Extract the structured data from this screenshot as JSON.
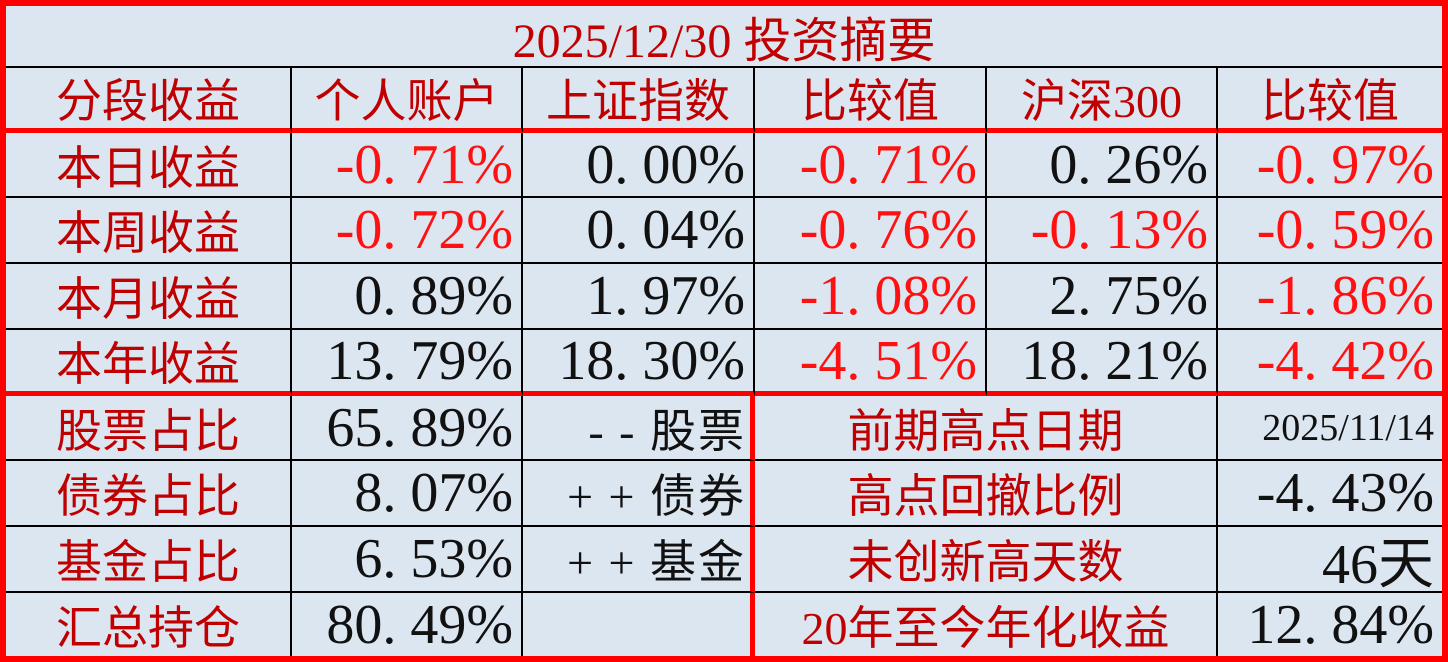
{
  "title": "2025/12/30 投资摘要",
  "header": {
    "cols": [
      "分段收益",
      "个人账户",
      "上证指数",
      "比较值",
      "沪深300",
      "比较值"
    ]
  },
  "upper": {
    "rows": [
      {
        "label": "本日收益",
        "v0": "-0. 71%",
        "v1": "0. 00%",
        "v2": "-0. 71%",
        "v3": "0. 26%",
        "v4": "-0. 97%"
      },
      {
        "label": "本周收益",
        "v0": "-0. 72%",
        "v1": "0. 04%",
        "v2": "-0. 76%",
        "v3": "-0. 13%",
        "v4": "-0. 59%"
      },
      {
        "label": "本月收益",
        "v0": "0. 89%",
        "v1": "1. 97%",
        "v2": "-1. 08%",
        "v3": "2. 75%",
        "v4": "-1. 86%"
      },
      {
        "label": "本年收益",
        "v0": "13. 79%",
        "v1": "18. 30%",
        "v2": "-4. 51%",
        "v3": "18. 21%",
        "v4": "-4. 42%"
      }
    ]
  },
  "lower": {
    "rows": [
      {
        "label": "股票占比",
        "value": "65. 89%",
        "sign": "- - 股票",
        "right_label": "前期高点日期",
        "right_value": "2025/11/14"
      },
      {
        "label": "债券占比",
        "value": "8. 07%",
        "sign": "+ + 债券",
        "right_label": "高点回撤比例",
        "right_value": "-4. 43%"
      },
      {
        "label": "基金占比",
        "value": "6. 53%",
        "sign": "+ + 基金",
        "right_label": "未创新高天数",
        "right_value": "46天"
      },
      {
        "label": "汇总持仓",
        "value": "80. 49%",
        "sign": "",
        "right_label": "20年至今年化收益",
        "right_value": "12. 84%"
      }
    ]
  },
  "colors": {
    "background": "#dce6f1",
    "label_dark_red": "#c00000",
    "negative_red": "#ff1111",
    "border_red": "#fe0000",
    "grid_black": "#000000",
    "value_black": "#111111"
  }
}
